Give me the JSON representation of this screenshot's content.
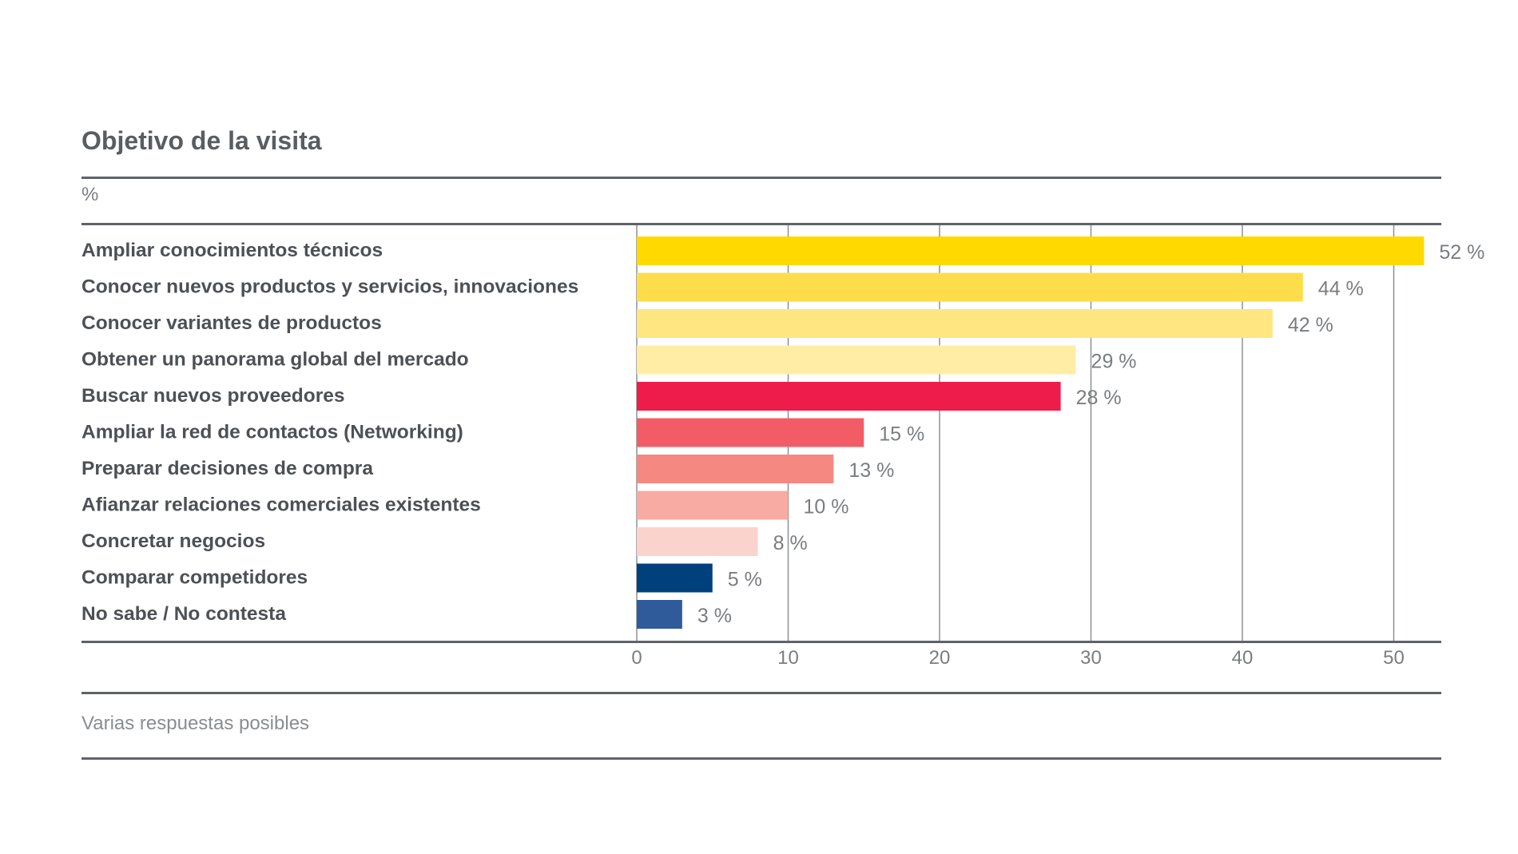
{
  "chart_data": {
    "type": "bar",
    "orientation": "horizontal",
    "title": "Objetivo de la visita",
    "unit_label": "%",
    "footnote": "Varias respuestas posibles",
    "value_suffix": " %",
    "xlim": [
      0,
      52
    ],
    "xticks": [
      0,
      10,
      20,
      30,
      40,
      50
    ],
    "grid": true,
    "categories": [
      "Ampliar conocimientos técnicos",
      "Conocer nuevos productos y servicios, innovaciones",
      "Conocer variantes de productos",
      "Obtener un panorama global del mercado",
      "Buscar nuevos proveedores",
      "Ampliar la red de contactos (Networking)",
      "Preparar decisiones de compra",
      "Afianzar relaciones comerciales existentes",
      "Concretar negocios",
      "Comparar competidores",
      "No sabe / No contesta"
    ],
    "values": [
      52,
      44,
      42,
      29,
      28,
      15,
      13,
      10,
      8,
      5,
      3
    ],
    "colors": [
      "#ffd900",
      "#ffdd4a",
      "#ffe680",
      "#ffeda6",
      "#ee1c4b",
      "#f25c66",
      "#f58880",
      "#f8aba2",
      "#fbd3cd",
      "#00407d",
      "#2f5b9a"
    ]
  }
}
